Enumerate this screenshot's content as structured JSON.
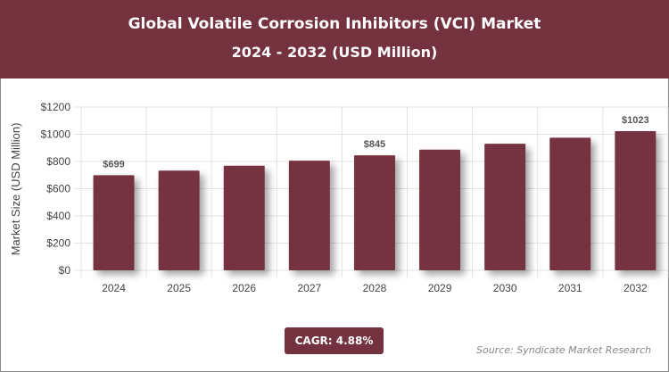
{
  "header": {
    "title": "Global Volatile Corrosion Inhibitors (VCI) Market",
    "subtitle": "2024 - 2032 (USD Million)"
  },
  "chart_data": {
    "type": "bar",
    "categories": [
      "2024",
      "2025",
      "2026",
      "2027",
      "2028",
      "2029",
      "2030",
      "2031",
      "2032"
    ],
    "values": [
      699,
      733,
      769,
      806,
      845,
      887,
      930,
      975,
      1023
    ],
    "data_labels": {
      "2024": "$699",
      "2028": "$845",
      "2032": "$1023"
    },
    "ylabel": "Market Size (USD Million)",
    "xlabel": "",
    "ylim": [
      0,
      1200
    ],
    "yticks": [
      "$0",
      "$200",
      "$400",
      "$600",
      "$800",
      "$1000",
      "$1200"
    ],
    "grid": true,
    "bar_color": "#74323f"
  },
  "footer": {
    "cagr": "CAGR: 4.88%",
    "source": "Source: Syndicate Market Research"
  }
}
